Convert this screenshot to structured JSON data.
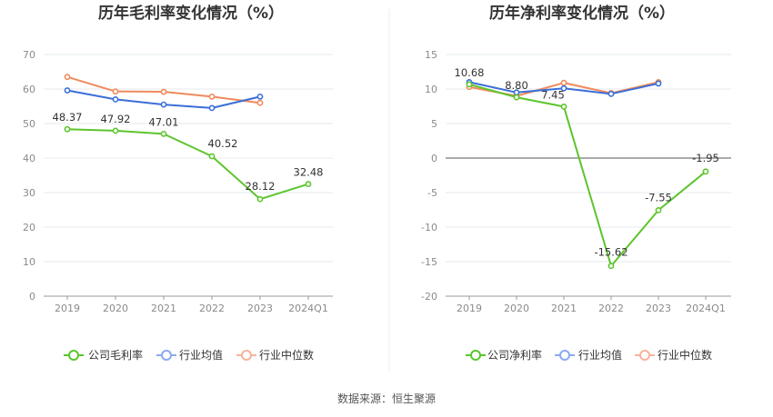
{
  "source_label": "数据来源：恒生聚源",
  "chart_data": [
    {
      "type": "line",
      "title": "历年毛利率变化情况（%）",
      "categories": [
        "2019",
        "2020",
        "2021",
        "2022",
        "2023",
        "2024Q1"
      ],
      "ylim": [
        0,
        70
      ],
      "yticks": [
        0,
        10,
        20,
        30,
        40,
        50,
        60,
        70
      ],
      "grid": true,
      "legend_position": "bottom",
      "series": [
        {
          "name": "公司毛利率",
          "color": "#5cc52c",
          "values": [
            48.37,
            47.92,
            47.01,
            40.52,
            28.12,
            32.48
          ],
          "labels": [
            "48.37",
            "47.92",
            "47.01",
            "40.52",
            "28.12",
            "32.48"
          ]
        },
        {
          "name": "行业均值",
          "color": "#3a6fd8",
          "values": [
            59.6,
            57.0,
            55.5,
            54.5,
            57.8,
            null
          ]
        },
        {
          "name": "行业中位数",
          "color": "#f08a5d",
          "values": [
            63.5,
            59.3,
            59.2,
            57.8,
            56.0,
            null
          ]
        }
      ]
    },
    {
      "type": "line",
      "title": "历年净利率变化情况（%）",
      "categories": [
        "2019",
        "2020",
        "2021",
        "2022",
        "2023",
        "2024Q1"
      ],
      "ylim": [
        -20,
        15
      ],
      "yticks": [
        -20,
        -15,
        -10,
        -5,
        0,
        5,
        10,
        15
      ],
      "grid": true,
      "legend_position": "bottom",
      "series": [
        {
          "name": "公司净利率",
          "color": "#5cc52c",
          "values": [
            10.68,
            8.8,
            7.45,
            -15.62,
            -7.55,
            -1.95
          ],
          "labels": [
            "10.68",
            "8.80",
            "7.45",
            "-15.62",
            "-7.55",
            "-1.95"
          ]
        },
        {
          "name": "行业均值",
          "color": "#3a6fd8",
          "values": [
            11.0,
            9.5,
            10.1,
            9.3,
            10.8,
            null
          ]
        },
        {
          "name": "行业中位数",
          "color": "#f08a5d",
          "values": [
            10.3,
            9.0,
            10.9,
            9.4,
            11.0,
            null
          ]
        }
      ]
    }
  ]
}
